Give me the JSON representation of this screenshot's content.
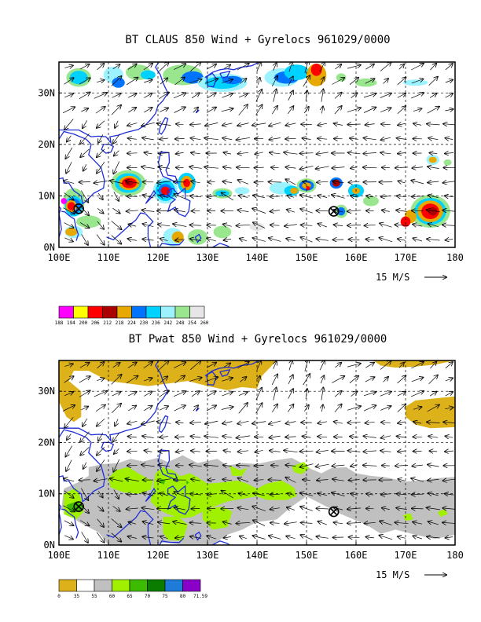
{
  "chart_data": [
    {
      "type": "map",
      "title": "BT CLAUS 850 Wind + Gyrelocs 961029/0000",
      "x_ticks": [
        "100E",
        "110E",
        "120E",
        "130E",
        "140E",
        "150E",
        "160E",
        "170E",
        "180"
      ],
      "y_ticks": [
        "0N",
        "10N",
        "20N",
        "30N"
      ],
      "xlim": [
        100,
        180
      ],
      "ylim": [
        0,
        36
      ],
      "grid": true,
      "vector_reference": "15 M/S",
      "colorbar_labels": [
        "188",
        "194",
        "200",
        "206",
        "212",
        "218",
        "224",
        "230",
        "236",
        "242",
        "248",
        "254",
        "260"
      ],
      "colorbar_colors": [
        "#ff00ff",
        "#ffff00",
        "#ff0000",
        "#aa0000",
        "#e7a800",
        "#0073ff",
        "#00d2ff",
        "#9df2ff",
        "#9ae68f",
        "#e6e6e6"
      ],
      "gyre_locations": [
        {
          "lon": 104,
          "lat": 7.5
        },
        {
          "lon": 155.5,
          "lat": 7
        }
      ]
    },
    {
      "type": "map",
      "title": "BT Pwat 850 Wind + Gyrelocs 961029/0000",
      "x_ticks": [
        "100E",
        "110E",
        "120E",
        "130E",
        "140E",
        "150E",
        "160E",
        "170E",
        "180"
      ],
      "y_ticks": [
        "0N",
        "10N",
        "20N",
        "30N"
      ],
      "xlim": [
        100,
        180
      ],
      "ylim": [
        0,
        36
      ],
      "grid": true,
      "vector_reference": "15 M/S",
      "colorbar_labels": [
        "0",
        "35",
        "55",
        "60",
        "65",
        "70",
        "75",
        "80",
        "71.59"
      ],
      "colorbar_colors": [
        "#dcb11a",
        "#ffffff",
        "#c0c0c0",
        "#a0f000",
        "#3cbb00",
        "#0a7d00",
        "#1e7bd8",
        "#8a00c8"
      ],
      "gyre_locations": [
        {
          "lon": 104,
          "lat": 7.5
        },
        {
          "lon": 155.5,
          "lat": 6.5
        }
      ]
    }
  ]
}
